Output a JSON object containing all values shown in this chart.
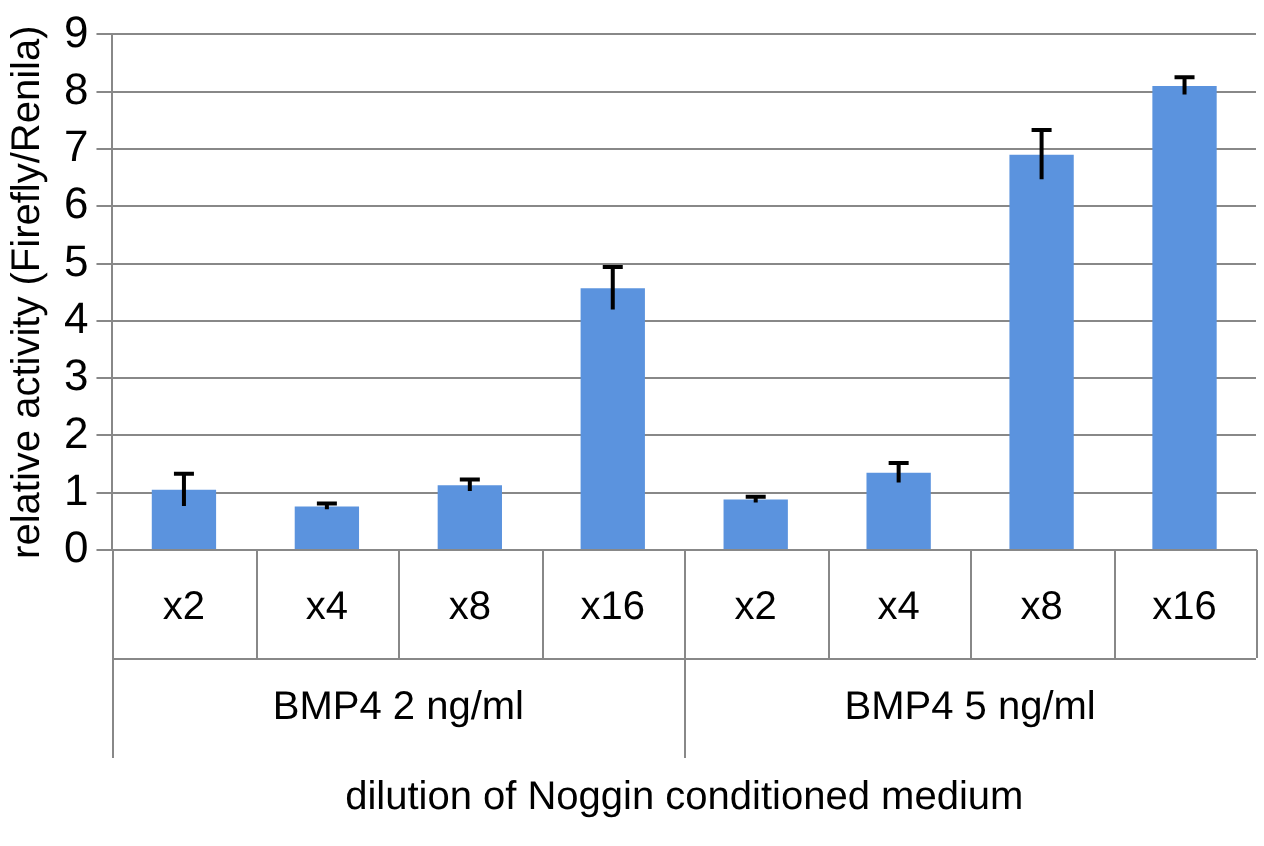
{
  "chart_data": {
    "type": "bar",
    "ylabel": "relative activity (Firefly/Renila)",
    "xlabel": "dilution of Noggin conditioned medium",
    "categories": [
      "x2",
      "x4",
      "x8",
      "x16",
      "x2",
      "x4",
      "x8",
      "x16"
    ],
    "values": [
      1.05,
      0.76,
      1.13,
      4.57,
      0.88,
      1.35,
      6.9,
      8.1
    ],
    "errors": [
      0.28,
      0.05,
      0.1,
      0.37,
      0.05,
      0.17,
      0.43,
      0.15
    ],
    "color": "#5b93de",
    "ylim": [
      0,
      9
    ],
    "yticks": [
      0,
      1,
      2,
      3,
      4,
      5,
      6,
      7,
      8,
      9
    ],
    "grid": "y",
    "annotations": [
      "BMP4 2 ng/ml",
      "BMP4 5 ng/ml"
    ]
  }
}
